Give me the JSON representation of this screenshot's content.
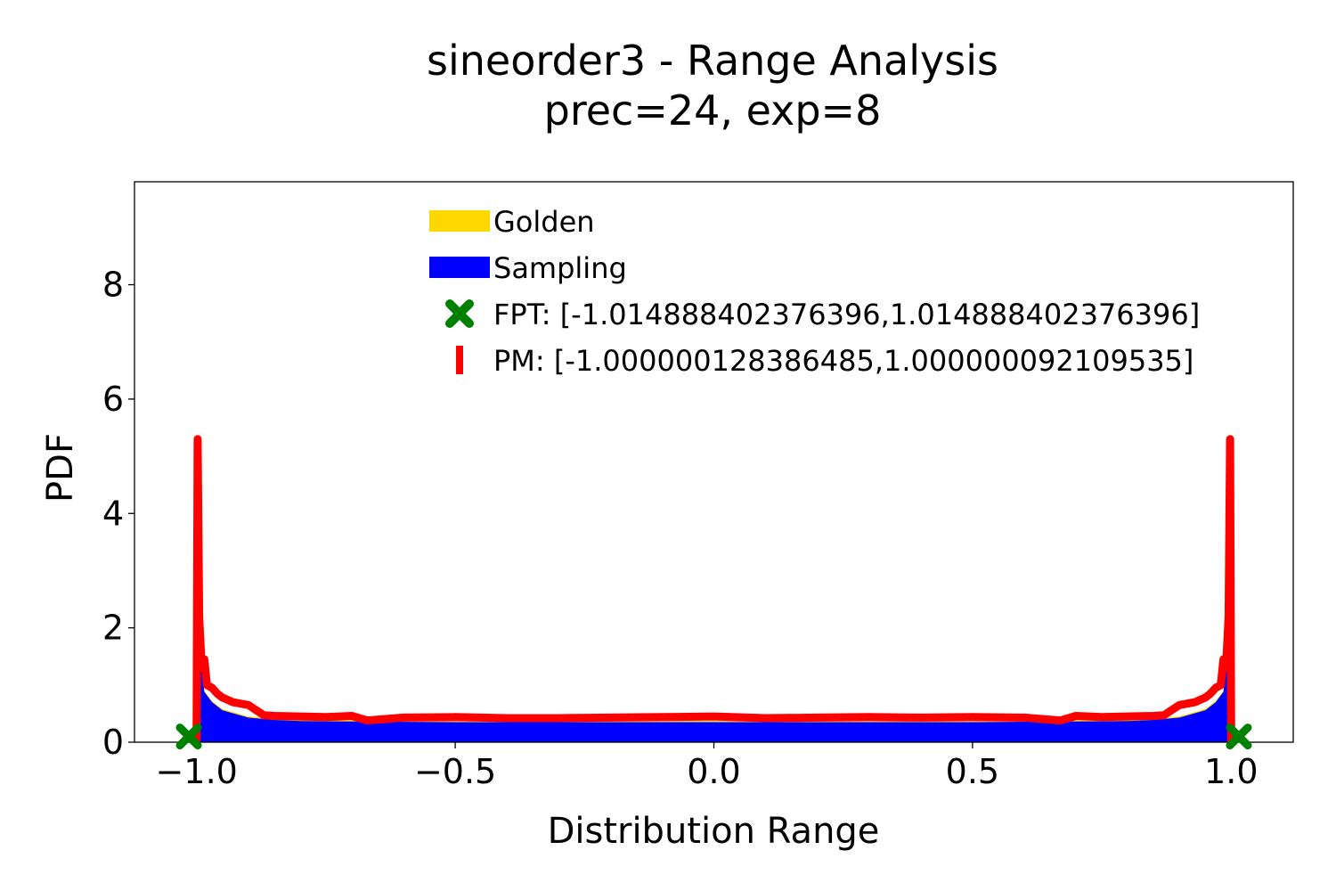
{
  "chart_data": {
    "type": "area",
    "title": "sineorder3 - Range Analysis",
    "subtitle": "prec=24, exp=8",
    "xlabel": "Distribution Range",
    "ylabel": "PDF",
    "xlim": [
      -1.12,
      1.12
    ],
    "ylim": [
      0,
      9.8
    ],
    "x_ticks": [
      {
        "value": -1.0,
        "label": "−1.0"
      },
      {
        "value": -0.5,
        "label": "−0.5"
      },
      {
        "value": 0.0,
        "label": "0.0"
      },
      {
        "value": 0.5,
        "label": "0.5"
      },
      {
        "value": 1.0,
        "label": "1.0"
      }
    ],
    "y_ticks": [
      {
        "value": 0,
        "label": "0"
      },
      {
        "value": 2,
        "label": "2"
      },
      {
        "value": 4,
        "label": "4"
      },
      {
        "value": 6,
        "label": "6"
      },
      {
        "value": 8,
        "label": "8"
      }
    ],
    "grid": false,
    "legend_position": "top-center",
    "legend": [
      {
        "label": "Golden",
        "marker": "patch",
        "color": "#FFD700"
      },
      {
        "label": "Sampling",
        "marker": "patch",
        "color": "#0000FF"
      },
      {
        "label": "FPT: [-1.014888402376396,1.014888402376396]",
        "marker": "x",
        "color": "#008000"
      },
      {
        "label": "PM: [-1.000000128386485,1.000000092109535]",
        "marker": "line",
        "color": "#FF0000"
      }
    ],
    "series": [
      {
        "name": "Golden",
        "kind": "histogram",
        "color": "#FFD700",
        "x": [
          -1.0,
          -0.985,
          -0.97,
          -0.95,
          -0.9,
          -0.85,
          -0.8,
          -0.5,
          0.0,
          0.5,
          0.8,
          0.85,
          0.9,
          0.95,
          0.97,
          0.985,
          1.0
        ],
        "y": [
          2.2,
          0.9,
          0.72,
          0.58,
          0.45,
          0.41,
          0.39,
          0.37,
          0.37,
          0.37,
          0.39,
          0.41,
          0.45,
          0.58,
          0.72,
          0.9,
          2.2
        ]
      },
      {
        "name": "Sampling",
        "kind": "histogram",
        "color": "#0000FF",
        "x": [
          -1.0,
          -0.985,
          -0.97,
          -0.95,
          -0.9,
          -0.85,
          -0.8,
          -0.5,
          0.0,
          0.5,
          0.8,
          0.85,
          0.9,
          0.95,
          0.97,
          0.985,
          1.0
        ],
        "y": [
          2.18,
          0.88,
          0.7,
          0.56,
          0.43,
          0.39,
          0.37,
          0.35,
          0.35,
          0.35,
          0.37,
          0.39,
          0.43,
          0.56,
          0.7,
          0.88,
          2.18
        ]
      },
      {
        "name": "PM",
        "kind": "line",
        "color": "#FF0000",
        "x": [
          -1.0,
          -0.998,
          -0.995,
          -0.99,
          -0.985,
          -0.98,
          -0.97,
          -0.96,
          -0.95,
          -0.93,
          -0.9,
          -0.87,
          -0.85,
          -0.8,
          -0.75,
          -0.7,
          -0.67,
          -0.6,
          -0.5,
          -0.4,
          -0.3,
          -0.2,
          -0.1,
          0.0,
          0.1,
          0.2,
          0.3,
          0.4,
          0.5,
          0.6,
          0.67,
          0.7,
          0.75,
          0.8,
          0.85,
          0.87,
          0.9,
          0.93,
          0.95,
          0.96,
          0.97,
          0.98,
          0.985,
          0.99,
          0.995,
          0.998,
          1.0
        ],
        "y": [
          0.0,
          5.3,
          2.2,
          1.3,
          1.45,
          1.0,
          0.95,
          0.85,
          0.78,
          0.7,
          0.65,
          0.47,
          0.46,
          0.45,
          0.44,
          0.46,
          0.38,
          0.43,
          0.44,
          0.42,
          0.42,
          0.43,
          0.44,
          0.45,
          0.42,
          0.43,
          0.44,
          0.43,
          0.44,
          0.43,
          0.38,
          0.46,
          0.44,
          0.45,
          0.46,
          0.47,
          0.65,
          0.7,
          0.78,
          0.85,
          0.95,
          1.0,
          1.45,
          1.3,
          2.2,
          5.3,
          0.0
        ]
      },
      {
        "name": "FPT",
        "kind": "markers",
        "color": "#008000",
        "x": [
          -1.014888402376396,
          1.014888402376396
        ],
        "y": [
          0.1,
          0.1
        ]
      }
    ]
  }
}
